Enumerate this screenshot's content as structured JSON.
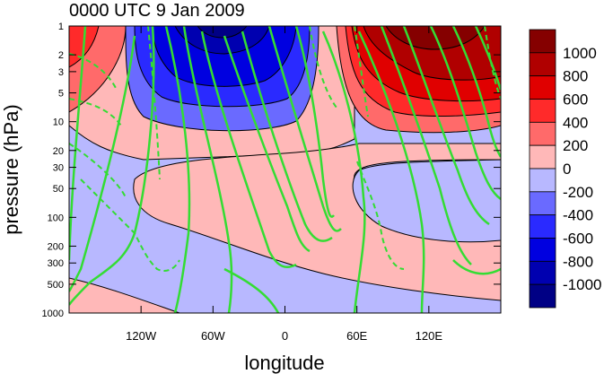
{
  "chart_data": {
    "type": "heatmap",
    "title": "0000 UTC 9 Jan 2009",
    "xlabel": "longitude",
    "ylabel": "pressure (hPa)",
    "x_axis": {
      "unit": "degrees longitude",
      "range": [
        -180,
        180
      ],
      "ticks": [
        {
          "value": -120,
          "label": "120W"
        },
        {
          "value": -60,
          "label": "60W"
        },
        {
          "value": 0,
          "label": "0"
        },
        {
          "value": 60,
          "label": "60E"
        },
        {
          "value": 120,
          "label": "120E"
        }
      ]
    },
    "y_axis": {
      "scale": "log",
      "reversed": true,
      "range": [
        1000,
        1
      ],
      "ticks": [
        1,
        2,
        3,
        5,
        10,
        20,
        30,
        50,
        100,
        200,
        300,
        500,
        1000
      ]
    },
    "colorbar": {
      "placement": "right",
      "labels": [
        "1000",
        "800",
        "600",
        "400",
        "200",
        "0",
        "-200",
        "-400",
        "-600",
        "-800",
        "-1000"
      ],
      "colors": [
        "#850000",
        "#b00000",
        "#e00000",
        "#ff2a2a",
        "#ff6a6a",
        "#ffb8b8",
        "#b8b8ff",
        "#6a6aff",
        "#2a2aff",
        "#0000e0",
        "#0000b0",
        "#000085"
      ]
    },
    "contour_colors": {
      "shading_line": "#000000",
      "overlay": "#33dd33"
    }
  }
}
